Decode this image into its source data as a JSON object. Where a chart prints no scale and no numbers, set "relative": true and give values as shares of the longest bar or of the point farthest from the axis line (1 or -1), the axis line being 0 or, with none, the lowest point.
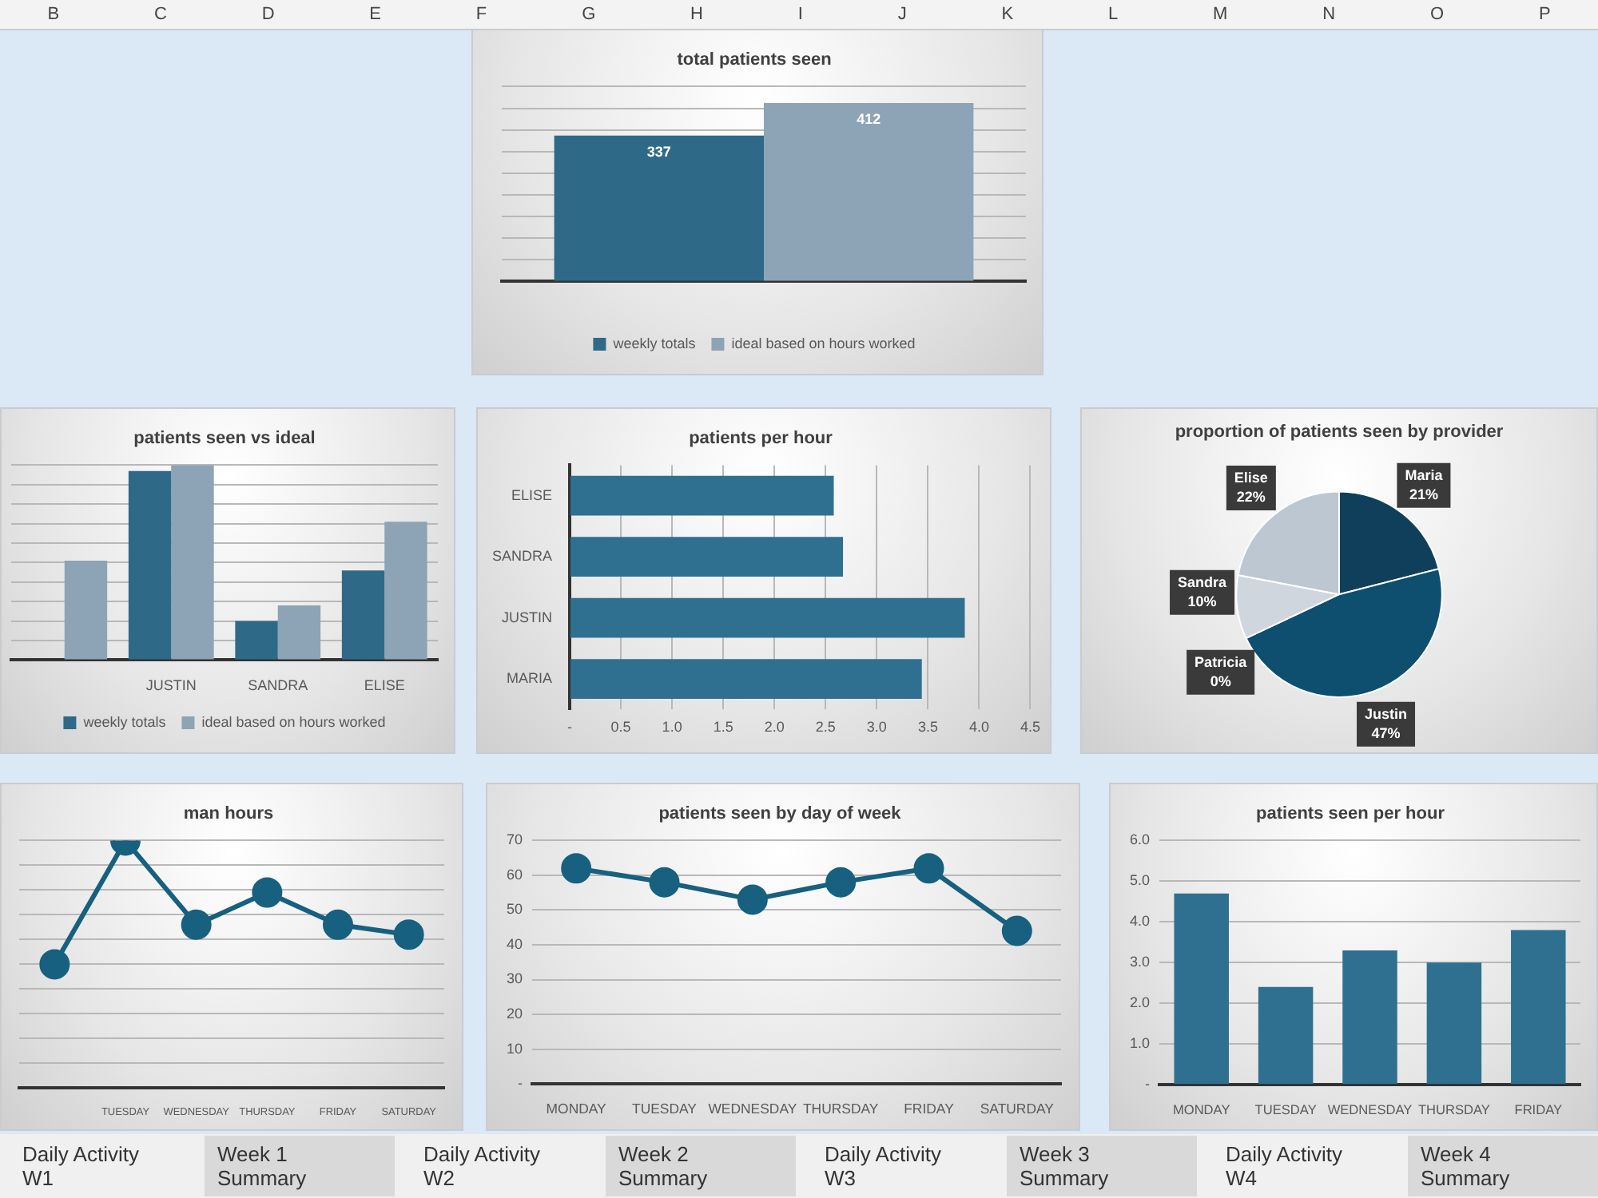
{
  "chart_data": [
    {
      "type": "other",
      "annotations": [
        "B",
        "C",
        "D",
        "E",
        "F",
        "G",
        "H",
        "I",
        "J",
        "K",
        "L",
        "M",
        "N",
        "O",
        "P"
      ]
    },
    {
      "type": "bar",
      "title": "total patients seen",
      "categories": [
        null
      ],
      "series": [
        {
          "name": "weekly totals",
          "color": "#2e6a88",
          "values": [
            337
          ]
        },
        {
          "name": "ideal based on hours worked",
          "color": "#8da4b6",
          "values": [
            412
          ]
        }
      ],
      "ylim": [
        0,
        450
      ],
      "yticks": [
        {
          "value": 0,
          "label": null
        },
        {
          "value": 50,
          "label": null
        },
        {
          "value": 100,
          "label": null
        },
        {
          "value": 150,
          "label": null
        },
        {
          "value": 200,
          "label": null
        },
        {
          "value": 250,
          "label": null
        },
        {
          "value": 300,
          "label": null
        },
        {
          "value": 350,
          "label": null
        },
        {
          "value": 400,
          "label": null
        },
        {
          "value": 450,
          "label": null
        }
      ],
      "data_labels": true,
      "grid": "y",
      "legend": "bottom"
    },
    {
      "type": "bar",
      "title": "patients seen vs ideal",
      "categories": [
        null,
        "JUSTIN",
        "SANDRA",
        "ELISE"
      ],
      "series": [
        {
          "name": "weekly totals",
          "color": "#2e6a88",
          "values": [
            null,
            0.97,
            0.2,
            0.46
          ]
        },
        {
          "name": "ideal based on hours worked",
          "color": "#8da4b6",
          "values": [
            0.51,
            1,
            0.28,
            0.71
          ]
        }
      ],
      "relative": true,
      "grid": "y",
      "legend": "bottom"
    },
    {
      "type": "bar",
      "title": "patients per hour",
      "orientation": "horizontal",
      "categories": [
        "ELISE",
        "SANDRA",
        "JUSTIN",
        "MARIA"
      ],
      "values": [
        2.58,
        2.67,
        3.86,
        3.44
      ],
      "color": "#2f7090",
      "xlim": [
        0,
        4.5
      ],
      "xticks": [
        {
          "value": 0,
          "label": "-"
        },
        0.5,
        {
          "value": 1,
          "label": "1.0"
        },
        1.5,
        {
          "value": 2,
          "label": "2.0"
        },
        2.5,
        {
          "value": 3,
          "label": "3.0"
        },
        3.5,
        {
          "value": 4,
          "label": "4.0"
        },
        4.5
      ],
      "grid": "x"
    },
    {
      "type": "pie",
      "title": "proportion of patients seen by provider",
      "categories": [
        "Maria",
        "Justin",
        "Patricia",
        "Sandra",
        "Elise"
      ],
      "values": [
        21,
        47,
        0,
        10,
        22
      ],
      "colors": [
        "#0f3f5a",
        "#0e4e6e",
        "#4f7d96",
        "#cfd6de",
        "#bcc7d2"
      ],
      "value_labels": [
        "21%",
        "47%",
        "0%",
        "10%",
        "22%"
      ]
    },
    {
      "type": "line",
      "title": "man hours",
      "categories": [
        null,
        "TUESDAY",
        "WEDNESDAY",
        "THURSDAY",
        "FRIDAY",
        "SATURDAY"
      ],
      "values": [
        0.5,
        1,
        0.66,
        0.79,
        0.66,
        0.62
      ],
      "color": "#17607f",
      "relative": true,
      "grid": "y",
      "marker": "circle",
      "line_style": "solid"
    },
    {
      "type": "line",
      "title": "patients seen by day of week",
      "categories": [
        "MONDAY",
        "TUESDAY",
        "WEDNESDAY",
        "THURSDAY",
        "FRIDAY",
        "SATURDAY"
      ],
      "values": [
        62,
        58,
        53,
        58,
        62,
        44
      ],
      "color": "#17607f",
      "ylim": [
        0,
        70
      ],
      "yticks": [
        {
          "value": 0,
          "label": "-"
        },
        10,
        20,
        30,
        40,
        50,
        60,
        70
      ],
      "grid": "y",
      "marker": "circle",
      "line_style": "solid"
    },
    {
      "type": "bar",
      "title": "patients seen per hour",
      "categories": [
        "MONDAY",
        "TUESDAY",
        "WEDNESDAY",
        "THURSDAY",
        "FRIDAY"
      ],
      "values": [
        4.7,
        2.4,
        3.3,
        3.0,
        3.8
      ],
      "color": "#2f7090",
      "ylim": [
        0,
        6
      ],
      "yticks": [
        {
          "value": 0,
          "label": "-"
        },
        {
          "value": 1,
          "label": "1.0"
        },
        {
          "value": 2,
          "label": "2.0"
        },
        {
          "value": 3,
          "label": "3.0"
        },
        {
          "value": 4,
          "label": "4.0"
        },
        {
          "value": 5,
          "label": "5.0"
        },
        {
          "value": 6,
          "label": "6.0"
        }
      ],
      "grid": "y"
    },
    {
      "type": "other",
      "annotations": [
        "Daily Activity W1",
        "Week 1 Summary",
        "Daily Activity W2",
        "Week 2 Summary",
        "Daily Activity W3",
        "Week 3 Summary",
        "Daily Activity W4",
        "Week 4 Summary"
      ]
    }
  ]
}
